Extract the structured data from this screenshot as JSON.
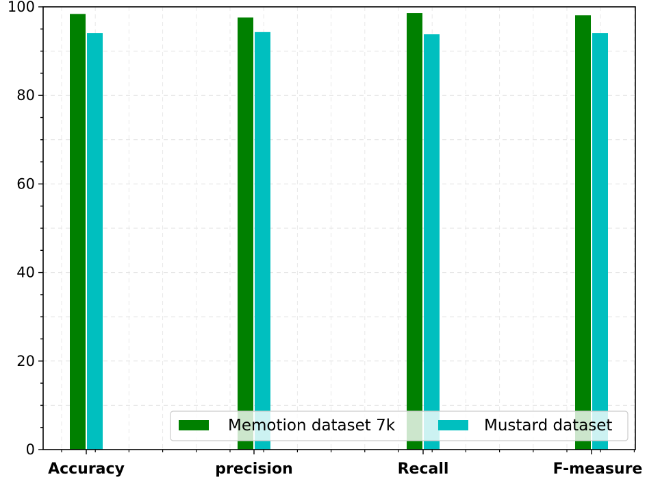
{
  "chart_data": {
    "type": "bar",
    "categories": [
      "Accuracy",
      "precision",
      "Recall",
      "F-measure"
    ],
    "series": [
      {
        "name": "Memotion dataset 7k",
        "color": "#008000",
        "values": [
          98.4,
          97.6,
          98.6,
          98.1
        ]
      },
      {
        "name": "Mustard dataset",
        "color": "#00bfbf",
        "values": [
          94.1,
          94.3,
          93.8,
          94.1
        ]
      }
    ],
    "ylim": [
      0,
      100
    ],
    "yticks": [
      0,
      20,
      40,
      60,
      80,
      100
    ],
    "xlabel": "",
    "ylabel": "",
    "title": "",
    "grid": true,
    "legend_position": "lower-right"
  }
}
